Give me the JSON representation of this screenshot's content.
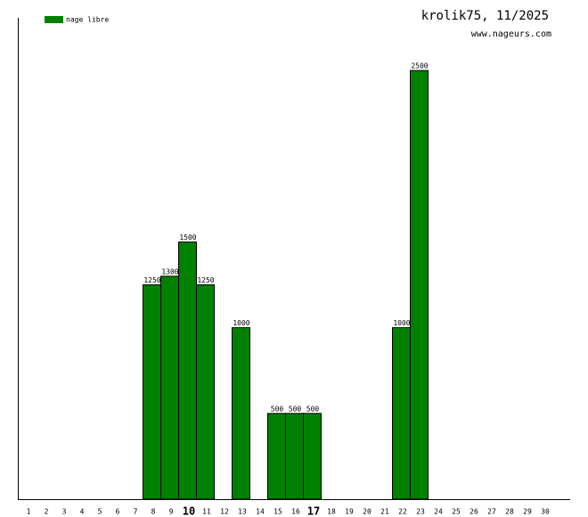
{
  "chart_data": {
    "type": "bar",
    "title": "krolik75, 11/2025",
    "subtitle": "www.nageurs.com",
    "categories": [
      "1",
      "2",
      "3",
      "4",
      "5",
      "6",
      "7",
      "8",
      "9",
      "10",
      "11",
      "12",
      "13",
      "14",
      "15",
      "16",
      "17",
      "18",
      "19",
      "20",
      "21",
      "22",
      "23",
      "24",
      "25",
      "26",
      "27",
      "28",
      "29",
      "30"
    ],
    "series": [
      {
        "name": "nage libre",
        "color": "#008000",
        "values": [
          null,
          null,
          null,
          null,
          null,
          null,
          null,
          1250,
          1300,
          1500,
          1250,
          null,
          1000,
          null,
          500,
          500,
          500,
          null,
          null,
          null,
          null,
          1000,
          2500,
          null,
          null,
          null,
          null,
          null,
          null,
          null
        ]
      }
    ],
    "bold_ticks": [
      9,
      16
    ],
    "ylim": [
      0,
      2807
    ],
    "grid": false,
    "legend": "top-left"
  }
}
